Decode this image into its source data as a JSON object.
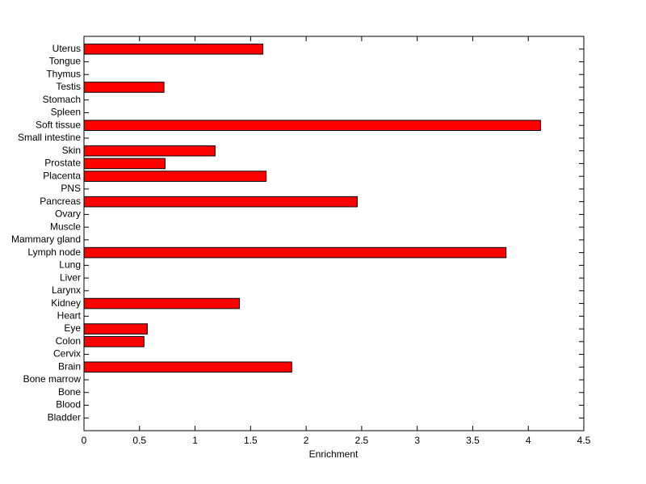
{
  "chart_data": {
    "type": "bar",
    "orientation": "horizontal",
    "xlabel": "Enrichment",
    "categories": [
      "Bladder",
      "Blood",
      "Bone",
      "Bone marrow",
      "Brain",
      "Cervix",
      "Colon",
      "Eye",
      "Heart",
      "Kidney",
      "Larynx",
      "Liver",
      "Lung",
      "Lymph node",
      "Mammary gland",
      "Muscle",
      "Ovary",
      "Pancreas",
      "PNS",
      "Placenta",
      "Prostate",
      "Skin",
      "Small intestine",
      "Soft tissue",
      "Spleen",
      "Stomach",
      "Testis",
      "Thymus",
      "Tongue",
      "Uterus"
    ],
    "values": [
      0,
      0,
      0,
      0,
      1.87,
      0,
      0.54,
      0.57,
      0,
      1.4,
      0,
      0,
      0,
      3.8,
      0,
      0,
      0,
      2.46,
      0,
      1.64,
      0.73,
      1.18,
      0,
      4.11,
      0,
      0,
      0.72,
      0,
      0,
      1.61
    ],
    "color": "#ff0000",
    "xlim": [
      0,
      4.5
    ],
    "xticks": [
      0,
      0.5,
      1,
      1.5,
      2,
      2.5,
      3,
      3.5,
      4,
      4.5
    ]
  }
}
